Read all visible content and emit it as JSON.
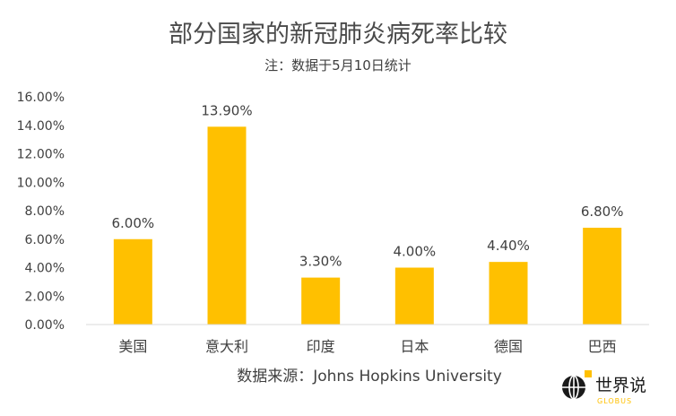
{
  "chart_data": {
    "type": "bar",
    "title": "部分国家的新冠肺炎病死率比较",
    "subtitle": "注：数据于5月10日统计",
    "categories": [
      "美国",
      "意大利",
      "印度",
      "日本",
      "德国",
      "巴西"
    ],
    "values": [
      6.0,
      13.9,
      3.3,
      4.0,
      4.4,
      6.8
    ],
    "data_labels": [
      "6.00%",
      "13.90%",
      "3.30%",
      "4.00%",
      "4.40%",
      "6.80%"
    ],
    "y_ticks": [
      "0.00%",
      "2.00%",
      "4.00%",
      "6.00%",
      "8.00%",
      "10.00%",
      "12.00%",
      "14.00%",
      "16.00%"
    ],
    "ylim": [
      0,
      16
    ],
    "grid": false,
    "legend": "none",
    "source": "数据来源：Johns Hopkins University",
    "bar_color": "#FFC000"
  },
  "logo": {
    "name": "世界说",
    "sub": "GLOBUS",
    "icon": "globe-icon",
    "accent_color": "#FFC000"
  }
}
